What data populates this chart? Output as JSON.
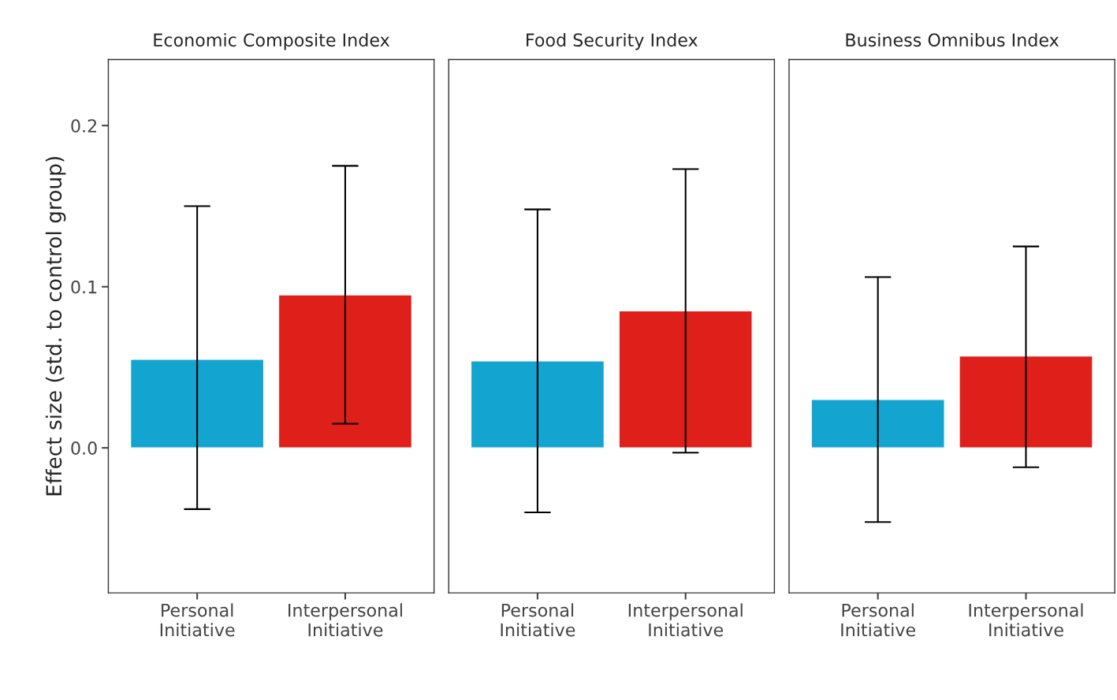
{
  "chart_data": [
    {
      "type": "bar",
      "title": "Economic Composite Index",
      "ylabel": "Effect size (std. to control group)",
      "categories": [
        "Personal\nInitiative",
        "Interpersonal\nInitiative"
      ],
      "values": [
        0.055,
        0.095
      ],
      "colors": [
        "#13a4d0",
        "#df1f1a"
      ],
      "errors": [
        [
          -0.038,
          0.15
        ],
        [
          0.015,
          0.175
        ]
      ],
      "ylim": [
        -0.09,
        0.241
      ],
      "yticks": [
        {
          "value": 0,
          "label": "0.0"
        },
        0.1,
        0.2
      ],
      "grid": false
    },
    {
      "type": "bar",
      "title": "Food Security Index",
      "categories": [
        "Personal\nInitiative",
        "Interpersonal\nInitiative"
      ],
      "values": [
        0.054,
        0.085
      ],
      "colors": [
        "#13a4d0",
        "#df1f1a"
      ],
      "errors": [
        [
          -0.04,
          0.148
        ],
        [
          -0.003,
          0.173
        ]
      ],
      "ylim": [
        -0.09,
        0.241
      ],
      "tick_labels": "x",
      "grid": false
    },
    {
      "type": "bar",
      "title": "Business Omnibus Index",
      "categories": [
        "Personal\nInitiative",
        "Interpersonal\nInitiative"
      ],
      "values": [
        0.03,
        0.057
      ],
      "colors": [
        "#13a4d0",
        "#df1f1a"
      ],
      "errors": [
        [
          -0.046,
          0.106
        ],
        [
          -0.012,
          0.125
        ]
      ],
      "ylim": [
        -0.09,
        0.241
      ],
      "tick_labels": "x",
      "grid": false
    }
  ]
}
